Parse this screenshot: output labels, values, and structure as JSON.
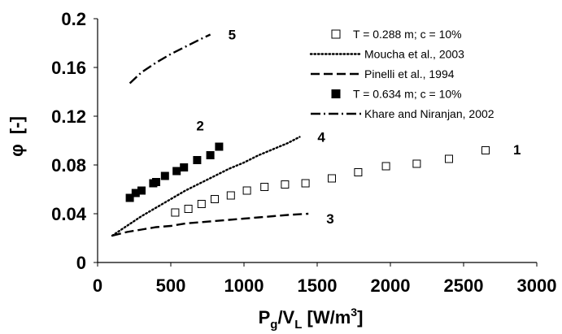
{
  "chart_data": {
    "type": "scatter",
    "title": "",
    "xlabel_parts": {
      "main": "P",
      "sub": "g",
      "mid": "/V",
      "sub2": "L",
      "unit": " [W/m",
      "sup": "3",
      "close": "]"
    },
    "ylabel_parts": {
      "symbol": "φ",
      "unit": "[-]"
    },
    "xlim": [
      0,
      3000
    ],
    "ylim": [
      0,
      0.2
    ],
    "x_ticks": [
      "0",
      "500",
      "1000",
      "1500",
      "2000",
      "2500",
      "3000"
    ],
    "x_tick_values": [
      0,
      500,
      1000,
      1500,
      2000,
      2500,
      3000
    ],
    "y_ticks": [
      "0",
      "0.04",
      "0.08",
      "0.12",
      "0.16",
      "0.2"
    ],
    "y_tick_values": [
      0,
      0.04,
      0.08,
      0.12,
      0.16,
      0.2
    ],
    "grid": false,
    "legend_position": "top-right",
    "series": [
      {
        "name": "T = 0.288 m; c = 10%",
        "marker": "open-square",
        "color": "#000000",
        "curve_label": "1",
        "x": [
          530,
          620,
          710,
          800,
          910,
          1020,
          1140,
          1280,
          1420,
          1600,
          1780,
          1970,
          2180,
          2400,
          2650
        ],
        "y": [
          0.041,
          0.044,
          0.048,
          0.052,
          0.055,
          0.059,
          0.062,
          0.064,
          0.065,
          0.069,
          0.074,
          0.079,
          0.081,
          0.085,
          0.092
        ]
      },
      {
        "name": "Moucha  et al., 2003",
        "line": "dotted",
        "color": "#000000",
        "curve_label": "4",
        "x": [
          100,
          200,
          300,
          400,
          500,
          600,
          700,
          800,
          900,
          1000,
          1100,
          1200,
          1300,
          1380
        ],
        "y": [
          0.022,
          0.03,
          0.038,
          0.045,
          0.052,
          0.059,
          0.065,
          0.071,
          0.077,
          0.082,
          0.088,
          0.093,
          0.098,
          0.103
        ]
      },
      {
        "name": "Pinelli et al., 1994",
        "line": "dashed",
        "color": "#000000",
        "curve_label": "3",
        "x": [
          100,
          200,
          300,
          400,
          500,
          600,
          700,
          800,
          900,
          1000,
          1100,
          1200,
          1300,
          1440
        ],
        "y": [
          0.022,
          0.025,
          0.027,
          0.029,
          0.03,
          0.032,
          0.033,
          0.034,
          0.035,
          0.036,
          0.037,
          0.038,
          0.039,
          0.04
        ]
      },
      {
        "name": "T = 0.634 m; c = 10%",
        "marker": "filled-square",
        "color": "#000000",
        "curve_label": "2",
        "x": [
          220,
          260,
          300,
          380,
          400,
          460,
          540,
          590,
          680,
          770,
          830
        ],
        "y": [
          0.053,
          0.057,
          0.059,
          0.065,
          0.066,
          0.071,
          0.075,
          0.078,
          0.084,
          0.088,
          0.095
        ]
      },
      {
        "name": "Khare and Niranjan, 2002",
        "line": "dash-dot",
        "color": "#000000",
        "curve_label": "5",
        "x": [
          220,
          300,
          400,
          500,
          600,
          700,
          770
        ],
        "y": [
          0.147,
          0.156,
          0.164,
          0.171,
          0.177,
          0.183,
          0.187
        ]
      }
    ]
  }
}
